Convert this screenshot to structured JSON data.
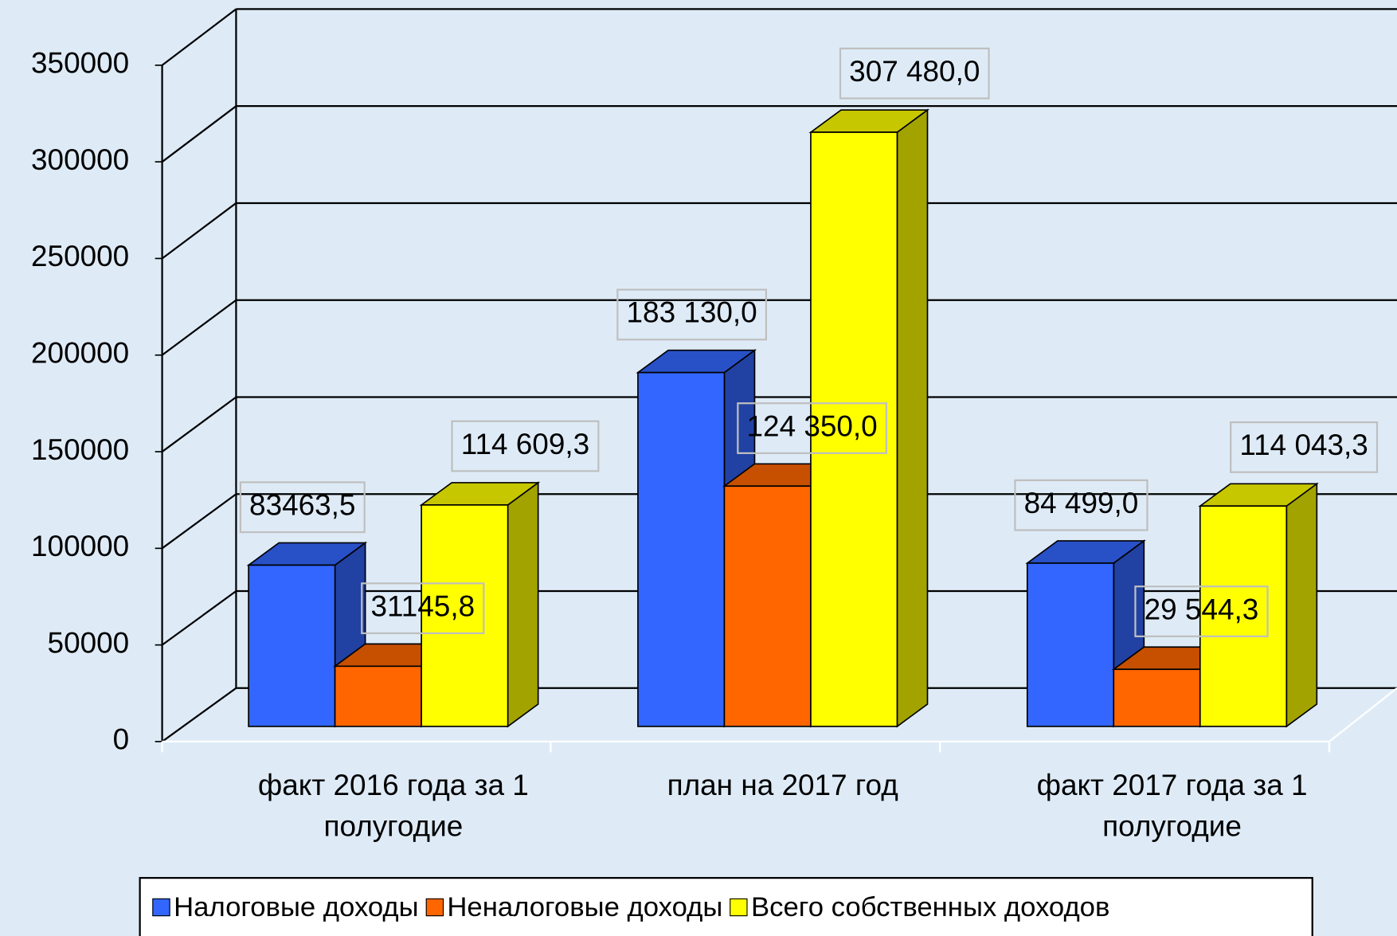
{
  "chart_data": {
    "type": "bar3d",
    "categories": [
      "факт 2016 года за 1 полугодие",
      "план на 2017 год",
      "факт 2017 года за 1 полугодие"
    ],
    "series": [
      {
        "name": "Налоговые доходы",
        "color": "#3366ff",
        "values": [
          83463.5,
          183130,
          84499
        ],
        "value_labels": [
          "83463,5",
          "183 130,0",
          "84 499,0"
        ]
      },
      {
        "name": "Неналоговые доходы",
        "color": "#ff6600",
        "values": [
          31145.8,
          124350,
          29544.3
        ],
        "value_labels": [
          "31145,8",
          "124 350,0",
          "29 544,3"
        ]
      },
      {
        "name": "Всего собственных доходов",
        "color": "#ffff00",
        "values": [
          114609.3,
          307480,
          114043.3
        ],
        "value_labels": [
          "114 609,3",
          "307 480,0",
          "114 043,3"
        ]
      }
    ],
    "ylim": [
      0,
      350000
    ],
    "yticks": [
      0,
      50000,
      100000,
      150000,
      200000,
      250000,
      300000,
      350000
    ],
    "grid": true,
    "legend": "bottom"
  }
}
